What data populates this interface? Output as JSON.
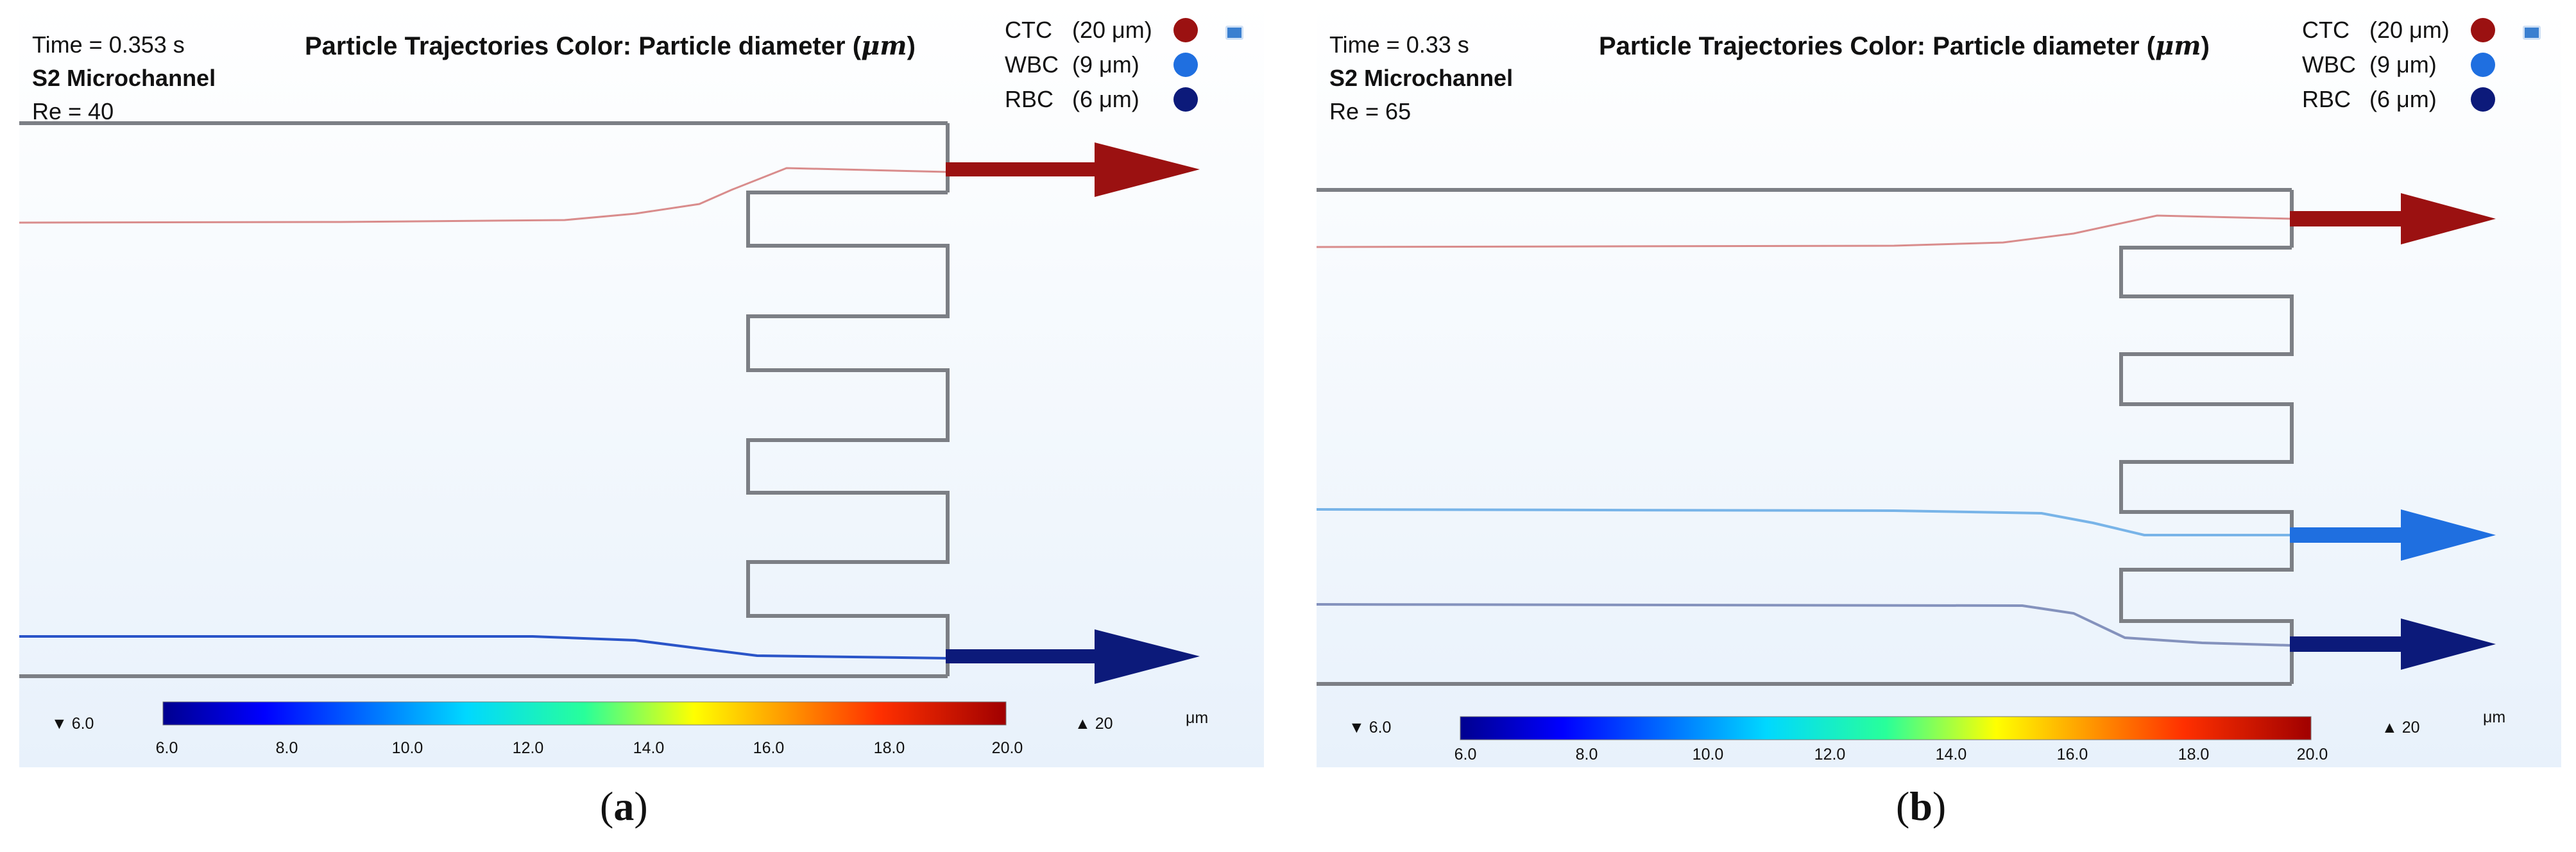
{
  "colors": {
    "ctc": "#9b1111",
    "wbc": "#1f6fe0",
    "rbc": "#0c1a7a",
    "channel": "#7c7f85"
  },
  "panel_a": {
    "time": "Time = 0.353 s",
    "channel": "S2 Microchannel",
    "reynolds": "Re = 40",
    "title_prefix": "Particle Trajectories Color: Particle diameter (",
    "title_unit": "μm",
    "title_suffix": ")",
    "legend": [
      {
        "name": "CTC",
        "size": "(20 μm)",
        "color": "#9b1111"
      },
      {
        "name": "WBC",
        "size": "(9 μm)",
        "color": "#1f6fe0"
      },
      {
        "name": "RBC",
        "size": "(6 μm)",
        "color": "#0c1a7a"
      }
    ],
    "outlets": [
      "CTC",
      "RBC"
    ],
    "colorbar": {
      "min_label": "▼ 6.0",
      "max_label": "▲ 20",
      "unit": "μm",
      "ticks": [
        "6.0",
        "8.0",
        "10.0",
        "12.0",
        "14.0",
        "16.0",
        "18.0",
        "20.0"
      ]
    },
    "caption_letter": "a"
  },
  "panel_b": {
    "time": "Time = 0.33 s",
    "channel": "S2 Microchannel",
    "reynolds": "Re = 65",
    "title_prefix": "Particle Trajectories Color: Particle diameter (",
    "title_unit": "μm",
    "title_suffix": ")",
    "legend": [
      {
        "name": "CTC",
        "size": "(20 μm)",
        "color": "#9b1111"
      },
      {
        "name": "WBC",
        "size": "(9 μm)",
        "color": "#1f6fe0"
      },
      {
        "name": "RBC",
        "size": "(6 μm)",
        "color": "#0c1a7a"
      }
    ],
    "outlets": [
      "CTC",
      "WBC",
      "RBC"
    ],
    "colorbar": {
      "min_label": "▼ 6.0",
      "max_label": "▲ 20",
      "unit": "μm",
      "ticks": [
        "6.0",
        "8.0",
        "10.0",
        "12.0",
        "14.0",
        "16.0",
        "18.0",
        "20.0"
      ]
    },
    "caption_letter": "b"
  }
}
